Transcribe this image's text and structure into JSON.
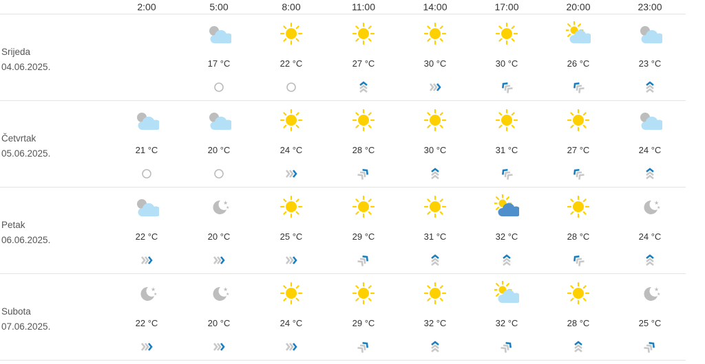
{
  "hours": [
    "2:00",
    "5:00",
    "8:00",
    "11:00",
    "14:00",
    "17:00",
    "20:00",
    "23:00"
  ],
  "colors": {
    "sun": "#ffd000",
    "cloud_light": "#b3e0f7",
    "cloud_dark": "#4f8fcc",
    "moon": "#bdbdbd",
    "wind_accent": "#1a7fc0",
    "wind_gray": "#c8c8c8"
  },
  "days": [
    {
      "name": "Srijeda",
      "date": "04.06.2025.",
      "icons": [
        null,
        "cloud-night",
        "sun",
        "sun",
        "sun",
        "sun",
        "sun-cloud",
        "cloud-night"
      ],
      "temps": [
        null,
        "17 °C",
        "22 °C",
        "27 °C",
        "30 °C",
        "30 °C",
        "26 °C",
        "23 °C"
      ],
      "wind": [
        null,
        "calm",
        "calm",
        "up",
        "right",
        "up-left",
        "up-left",
        "up"
      ]
    },
    {
      "name": "Četvrtak",
      "date": "05.06.2025.",
      "icons": [
        "cloud-night",
        "cloud-night",
        "sun",
        "sun",
        "sun",
        "sun",
        "sun",
        "cloud-night"
      ],
      "temps": [
        "21 °C",
        "20 °C",
        "24 °C",
        "28 °C",
        "30 °C",
        "31 °C",
        "27 °C",
        "24 °C"
      ],
      "wind": [
        "calm",
        "calm",
        "right",
        "up-right",
        "up",
        "up-left",
        "up-left",
        "up"
      ]
    },
    {
      "name": "Petak",
      "date": "06.06.2025.",
      "icons": [
        "cloud-night",
        "moon",
        "sun",
        "sun",
        "sun",
        "sun-cloud-dark",
        "sun",
        "moon"
      ],
      "temps": [
        "22 °C",
        "20 °C",
        "25 °C",
        "29 °C",
        "31 °C",
        "32 °C",
        "28 °C",
        "24 °C"
      ],
      "wind": [
        "right",
        "right",
        "right",
        "up-right",
        "up",
        "up",
        "up-left",
        "up"
      ]
    },
    {
      "name": "Subota",
      "date": "07.06.2025.",
      "icons": [
        "moon",
        "moon",
        "sun",
        "sun",
        "sun",
        "sun-cloud",
        "sun",
        "moon"
      ],
      "temps": [
        "22 °C",
        "20 °C",
        "24 °C",
        "29 °C",
        "32 °C",
        "32 °C",
        "28 °C",
        "25 °C"
      ],
      "wind": [
        "right",
        "right",
        "right",
        "up-right",
        "up",
        "up-right",
        "up",
        "up-right"
      ]
    }
  ]
}
